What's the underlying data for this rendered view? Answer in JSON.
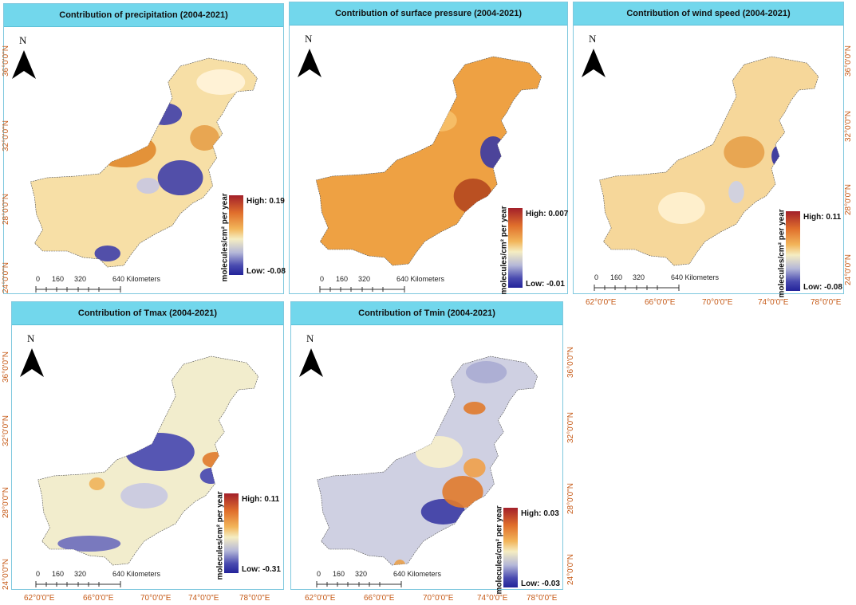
{
  "legend_unit": "molecules/cm² per year",
  "scale": {
    "ticks": [
      "0",
      "160",
      "320",
      "640 Kilometers"
    ]
  },
  "north_letter": "N",
  "panels": [
    {
      "title": "Contribution of precipitation (2004-2021)",
      "high": "High: 0.19",
      "low": "Low: -0.08",
      "scheme": "precip"
    },
    {
      "title": "Contribution of surface pressure (2004-2021)",
      "high": "High: 0.007",
      "low": "Low: -0.01",
      "scheme": "pressure"
    },
    {
      "title": "Contribution of wind speed (2004-2021)",
      "high": "High: 0.11",
      "low": "Low: -0.08",
      "scheme": "wind"
    },
    {
      "title": "Contribution of Tmax (2004-2021)",
      "high": "High: 0.11",
      "low": "Low: -0.31",
      "scheme": "tmax"
    },
    {
      "title": "Contribution of Tmin (2004-2021)",
      "high": "High: 0.03",
      "low": "Low: -0.03",
      "scheme": "tmin"
    }
  ],
  "lat_labels": [
    "36°0'0\"N",
    "32°0'0\"N",
    "28°0'0\"N",
    "24°0'0\"N"
  ],
  "lon_labels": [
    "62°0'0\"E",
    "66°0'0\"E",
    "70°0'0\"E",
    "74°0'0\"E",
    "78°0'0\"E"
  ],
  "colors": {
    "title_bg": "#72d7ec",
    "axis_label": "#c65a17",
    "high": "#a3202a",
    "low": "#23239a"
  }
}
